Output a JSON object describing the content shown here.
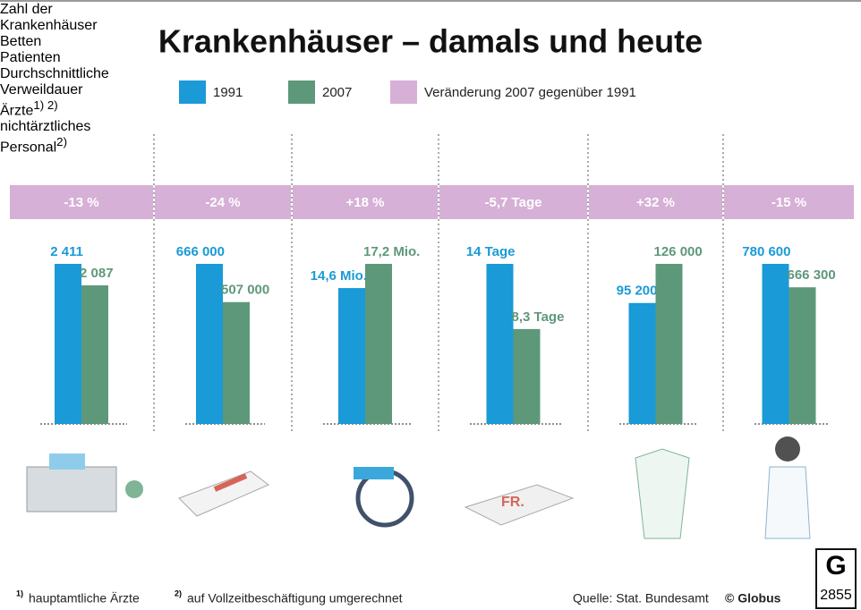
{
  "title": "Krankenhäuser – damals und heute",
  "legend": [
    {
      "name": "1991",
      "color": "#1a9ad6"
    },
    {
      "name": "2007",
      "color": "#5e987a"
    },
    {
      "name": "Veränderung 2007 gegenüber 1991",
      "color": "#d6b0d6"
    }
  ],
  "chart_data": [
    {
      "type": "bar",
      "title": "Zahl der Krankenhäuser",
      "change": "-13 %",
      "values": [
        2411,
        2087
      ],
      "value_labels": [
        "2 411",
        "2 087"
      ]
    },
    {
      "type": "bar",
      "title": "Betten",
      "change": "-24 %",
      "values": [
        666000,
        507000
      ],
      "value_labels": [
        "666 000",
        "507 000"
      ]
    },
    {
      "type": "bar",
      "title": "Patienten",
      "change": "+18 %",
      "values": [
        14.6,
        17.2
      ],
      "value_labels": [
        "14,6 Mio.",
        "17,2 Mio."
      ]
    },
    {
      "type": "bar",
      "title": "Durchschnittliche Verweildauer",
      "change": "-5,7 Tage",
      "values": [
        14,
        8.3
      ],
      "value_labels": [
        "14 Tage",
        "8,3 Tage"
      ]
    },
    {
      "type": "bar",
      "title": "Ärzte",
      "title_note": "1) 2)",
      "change": "+32 %",
      "values": [
        95200,
        126000
      ],
      "value_labels": [
        "95 200",
        "126 000"
      ]
    },
    {
      "type": "bar",
      "title": "nichtärztliches Personal",
      "title_note": "2)",
      "change": "-15 %",
      "values": [
        780600,
        666300
      ],
      "value_labels": [
        "780 600",
        "666 300"
      ]
    }
  ],
  "footnotes": [
    {
      "mark": "1)",
      "text": "hauptamtliche Ärzte"
    },
    {
      "mark": "2)",
      "text": "auf Vollzeitbeschäftigung umgerechnet"
    }
  ],
  "source": "Quelle: Stat. Bundesamt",
  "credit": "© Globus",
  "logo_number": "2855"
}
